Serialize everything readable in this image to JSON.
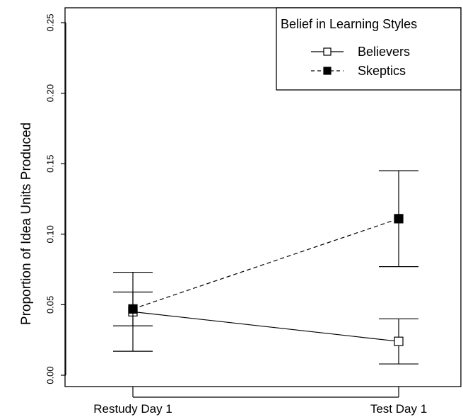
{
  "chart_data": {
    "type": "line",
    "title": "",
    "xlabel": "",
    "ylabel": "Proportion of Idea Units Produced",
    "categories": [
      "Restudy Day 1",
      "Test Day 1"
    ],
    "ylim": [
      0,
      0.25
    ],
    "yticks": [
      "0.00",
      "0.05",
      "0.10",
      "0.15",
      "0.20",
      "0.25"
    ],
    "grid": false,
    "legend": {
      "title": "Belief in Learning Styles",
      "position": "top-right"
    },
    "series": [
      {
        "name": "Believers",
        "values": [
          0.045,
          0.024
        ],
        "error_low": [
          0.017,
          0.008
        ],
        "error_high": [
          0.073,
          0.04
        ],
        "marker": "open-square",
        "line": "solid"
      },
      {
        "name": "Skeptics",
        "values": [
          0.047,
          0.111
        ],
        "error_low": [
          0.035,
          0.077
        ],
        "error_high": [
          0.059,
          0.145
        ],
        "marker": "filled-square",
        "line": "dashed"
      }
    ]
  }
}
